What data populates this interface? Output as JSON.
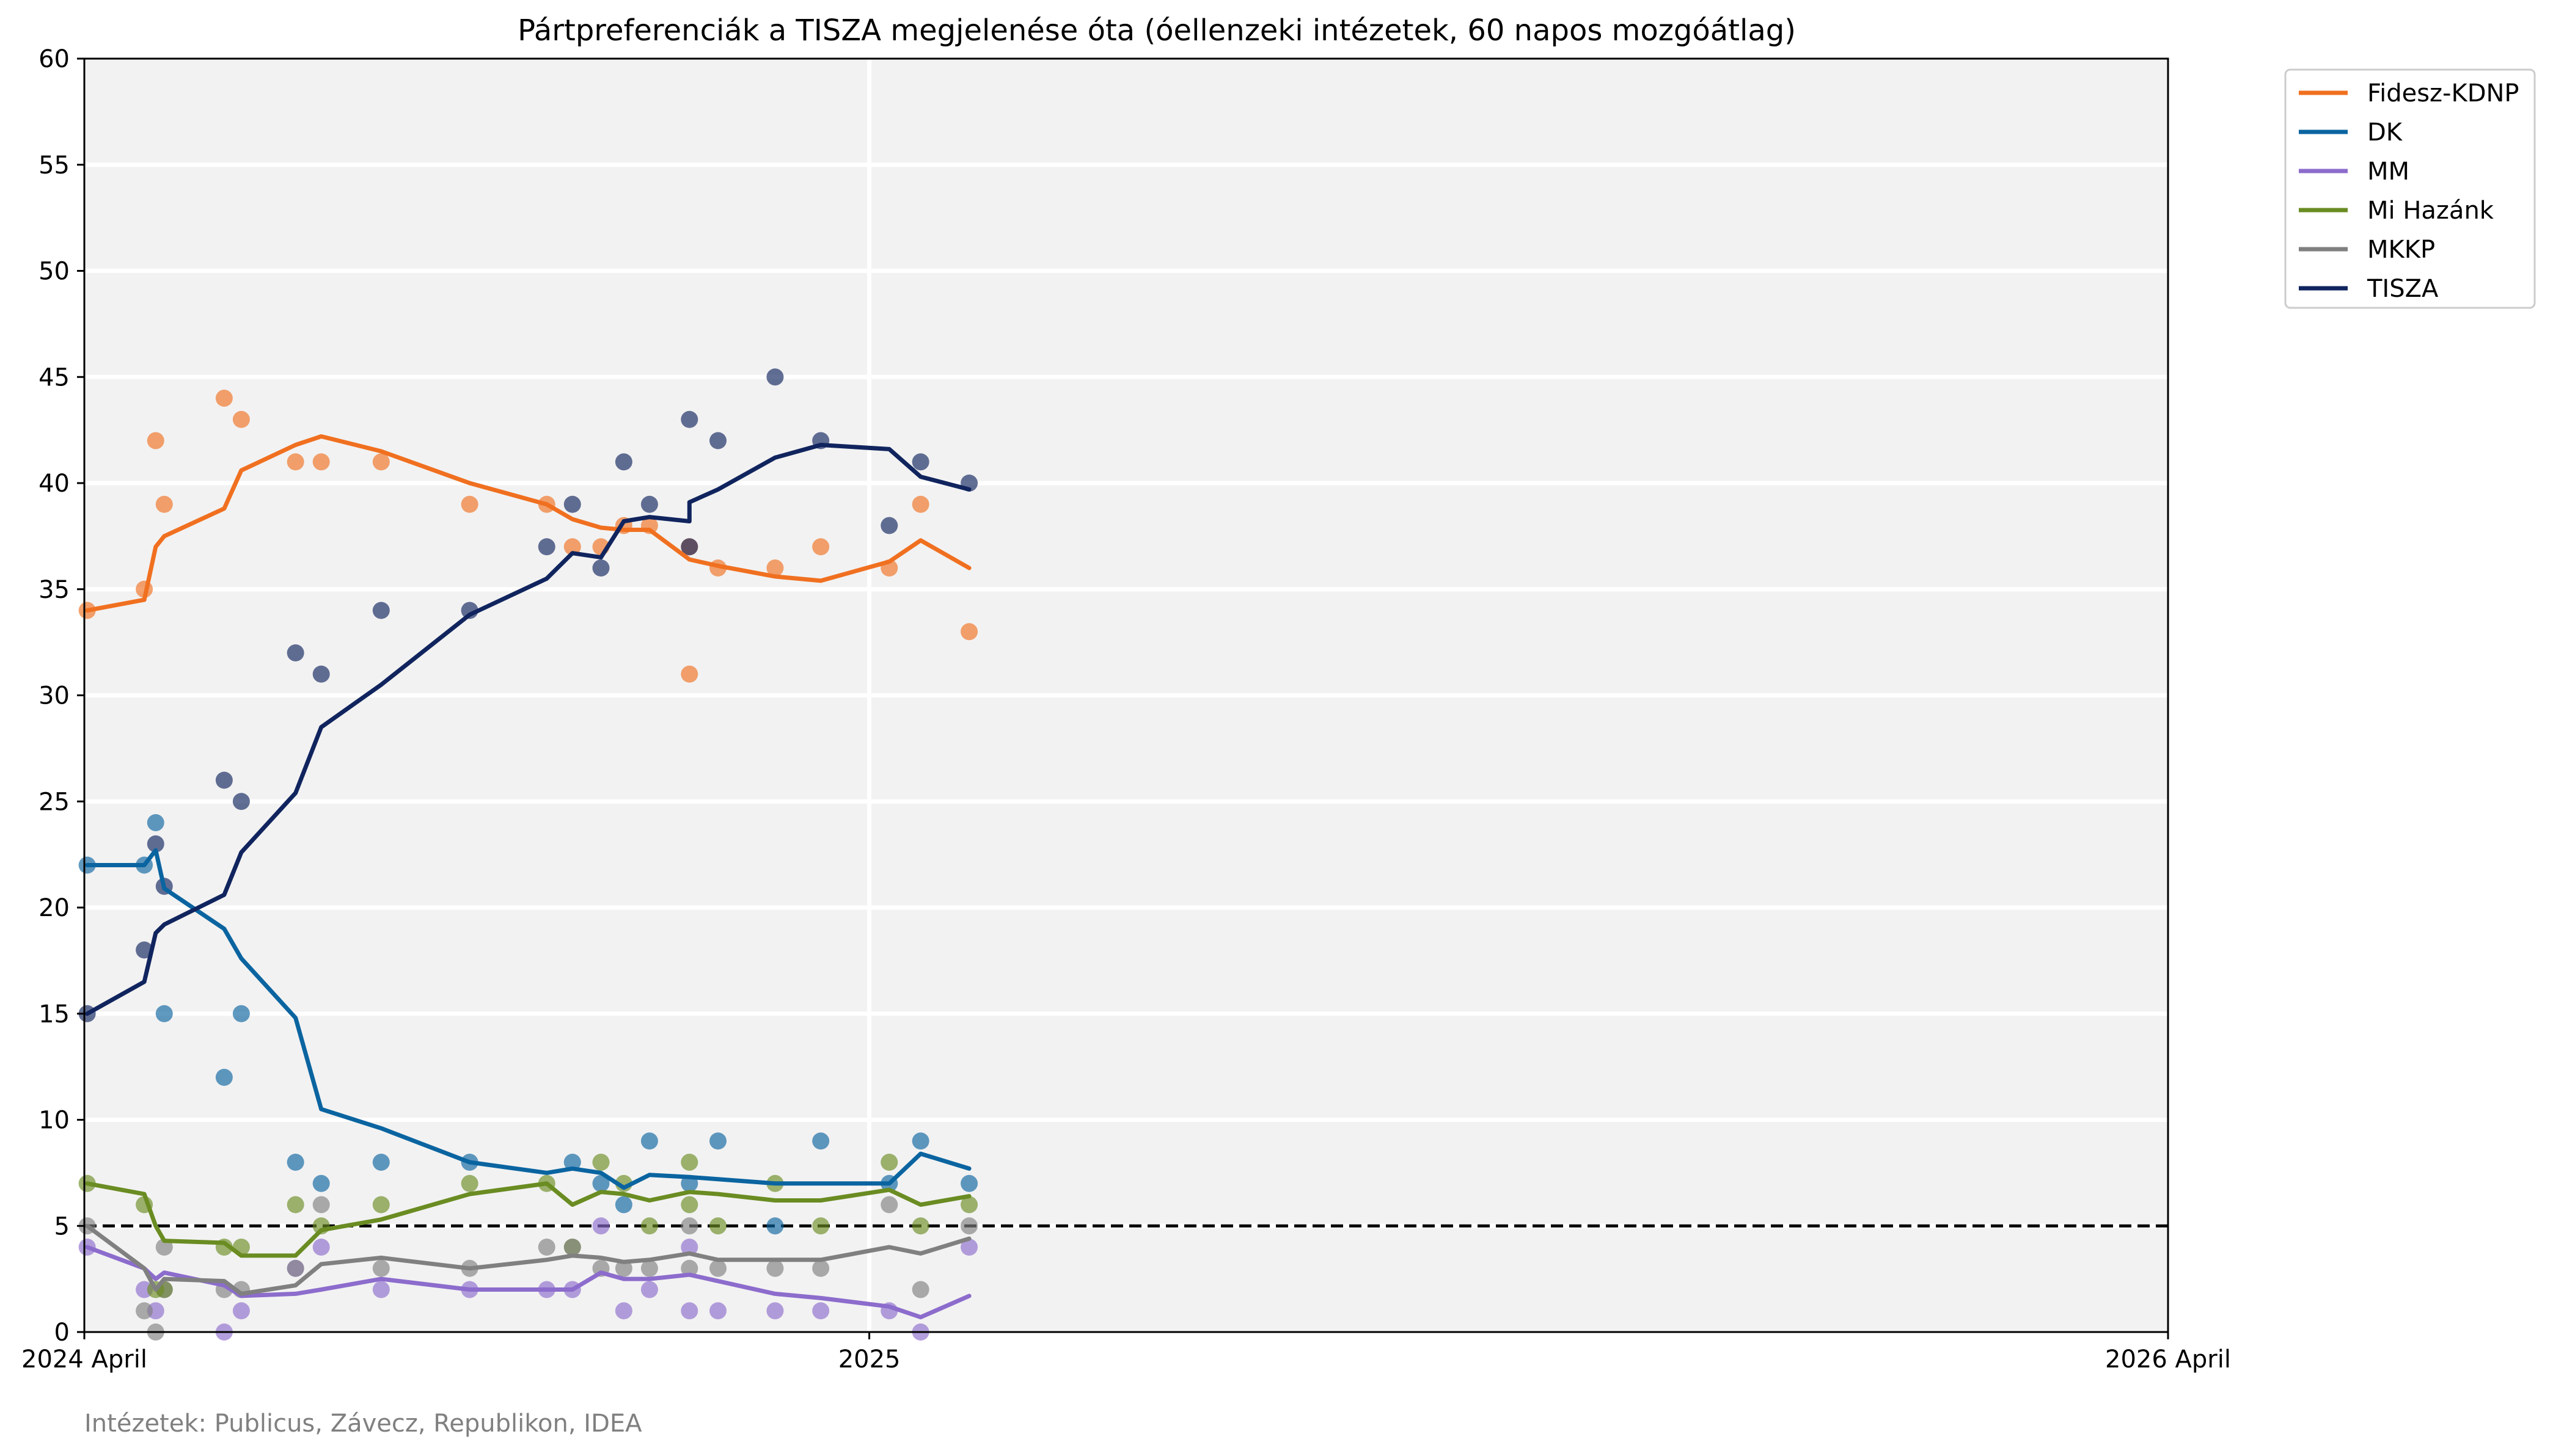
{
  "chart_data": {
    "type": "line",
    "title": "Pártpreferenciák a TISZA megjelenése óta (óellenzeki intézetek, 60 napos mozgóátlag)",
    "xlabel": "",
    "ylabel": "",
    "footnote": "Intézetek: Publicus, Závecz, Republikon, IDEA",
    "x_ticks": [
      {
        "date": "2024-04-01",
        "label": "2024 April"
      },
      {
        "date": "2025-01-01",
        "label": "2025"
      },
      {
        "date": "2026-04-01",
        "label": "2026 April"
      }
    ],
    "xlim": [
      "2024-04-01",
      "2026-04-01"
    ],
    "ylim": [
      0,
      60
    ],
    "y_ticks": [
      0,
      5,
      10,
      15,
      20,
      25,
      30,
      35,
      40,
      45,
      50,
      55,
      60
    ],
    "grid": true,
    "legend_position": "outside top-right",
    "threshold": {
      "value": 5,
      "style": "dashed",
      "color": "#000000"
    },
    "series": [
      {
        "name": "Fidesz-KDNP",
        "color": "#f07020",
        "line": [
          [
            "2024-04-02",
            34
          ],
          [
            "2024-04-22",
            34.5
          ],
          [
            "2024-04-26",
            37
          ],
          [
            "2024-04-29",
            37.5
          ],
          [
            "2024-05-20",
            38.8
          ],
          [
            "2024-05-26",
            40.6
          ],
          [
            "2024-06-14",
            41.8
          ],
          [
            "2024-06-23",
            42.2
          ],
          [
            "2024-07-14",
            41.5
          ],
          [
            "2024-08-14",
            40
          ],
          [
            "2024-09-10",
            39
          ],
          [
            "2024-09-19",
            38.3
          ],
          [
            "2024-09-29",
            37.9
          ],
          [
            "2024-10-07",
            37.8
          ],
          [
            "2024-10-16",
            37.8
          ],
          [
            "2024-10-30",
            36.4
          ],
          [
            "2024-11-09",
            36.1
          ],
          [
            "2024-11-29",
            35.6
          ],
          [
            "2024-12-15",
            35.4
          ],
          [
            "2025-01-08",
            36.3
          ],
          [
            "2025-01-19",
            37.3
          ],
          [
            "2025-02-05",
            36
          ]
        ],
        "points": [
          [
            "2024-04-02",
            34
          ],
          [
            "2024-04-22",
            35
          ],
          [
            "2024-04-26",
            42
          ],
          [
            "2024-04-29",
            39
          ],
          [
            "2024-05-20",
            44
          ],
          [
            "2024-05-26",
            43
          ],
          [
            "2024-06-14",
            41
          ],
          [
            "2024-06-23",
            41
          ],
          [
            "2024-07-14",
            41
          ],
          [
            "2024-08-14",
            39
          ],
          [
            "2024-09-10",
            39
          ],
          [
            "2024-09-19",
            37
          ],
          [
            "2024-09-29",
            37
          ],
          [
            "2024-10-07",
            38
          ],
          [
            "2024-10-16",
            38
          ],
          [
            "2024-10-30",
            31
          ],
          [
            "2024-10-30",
            37
          ],
          [
            "2024-11-09",
            36
          ],
          [
            "2024-11-29",
            36
          ],
          [
            "2024-12-15",
            37
          ],
          [
            "2025-01-08",
            36
          ],
          [
            "2025-01-19",
            39
          ],
          [
            "2025-02-05",
            33
          ]
        ]
      },
      {
        "name": "DK",
        "color": "#0a64a0",
        "line": [
          [
            "2024-04-02",
            22
          ],
          [
            "2024-04-22",
            22
          ],
          [
            "2024-04-26",
            22.7
          ],
          [
            "2024-04-29",
            20.9
          ],
          [
            "2024-05-20",
            19
          ],
          [
            "2024-05-26",
            17.6
          ],
          [
            "2024-06-14",
            14.8
          ],
          [
            "2024-06-23",
            10.5
          ],
          [
            "2024-07-14",
            9.6
          ],
          [
            "2024-08-14",
            8
          ],
          [
            "2024-09-10",
            7.5
          ],
          [
            "2024-09-19",
            7.7
          ],
          [
            "2024-09-29",
            7.5
          ],
          [
            "2024-10-07",
            6.8
          ],
          [
            "2024-10-16",
            7.4
          ],
          [
            "2024-10-30",
            7.3
          ],
          [
            "2024-11-09",
            7.2
          ],
          [
            "2024-11-29",
            7
          ],
          [
            "2024-12-15",
            7
          ],
          [
            "2025-01-08",
            7
          ],
          [
            "2025-01-19",
            8.4
          ],
          [
            "2025-02-05",
            7.7
          ]
        ],
        "points": [
          [
            "2024-04-02",
            22
          ],
          [
            "2024-04-22",
            22
          ],
          [
            "2024-04-26",
            24
          ],
          [
            "2024-04-29",
            15
          ],
          [
            "2024-05-20",
            12
          ],
          [
            "2024-05-26",
            15
          ],
          [
            "2024-06-14",
            8
          ],
          [
            "2024-06-23",
            7
          ],
          [
            "2024-07-14",
            8
          ],
          [
            "2024-08-14",
            8
          ],
          [
            "2024-09-19",
            8
          ],
          [
            "2024-09-29",
            7
          ],
          [
            "2024-10-07",
            6
          ],
          [
            "2024-10-16",
            9
          ],
          [
            "2024-10-30",
            7
          ],
          [
            "2024-11-09",
            9
          ],
          [
            "2024-11-29",
            5
          ],
          [
            "2024-12-15",
            9
          ],
          [
            "2025-01-08",
            7
          ],
          [
            "2025-01-19",
            9
          ],
          [
            "2025-02-05",
            7
          ]
        ]
      },
      {
        "name": "MM",
        "color": "#8c6ccc",
        "line": [
          [
            "2024-04-02",
            4
          ],
          [
            "2024-04-22",
            3
          ],
          [
            "2024-04-26",
            2.5
          ],
          [
            "2024-04-29",
            2.8
          ],
          [
            "2024-05-20",
            2.2
          ],
          [
            "2024-05-26",
            1.7
          ],
          [
            "2024-06-14",
            1.8
          ],
          [
            "2024-06-23",
            2
          ],
          [
            "2024-07-14",
            2.5
          ],
          [
            "2024-08-14",
            2
          ],
          [
            "2024-09-10",
            2
          ],
          [
            "2024-09-19",
            2
          ],
          [
            "2024-09-29",
            2.8
          ],
          [
            "2024-10-07",
            2.5
          ],
          [
            "2024-10-16",
            2.5
          ],
          [
            "2024-10-30",
            2.7
          ],
          [
            "2024-11-09",
            2.4
          ],
          [
            "2024-11-29",
            1.8
          ],
          [
            "2024-12-15",
            1.6
          ],
          [
            "2025-01-08",
            1.2
          ],
          [
            "2025-01-19",
            0.7
          ],
          [
            "2025-02-05",
            1.7
          ]
        ],
        "points": [
          [
            "2024-04-02",
            4
          ],
          [
            "2024-04-22",
            2
          ],
          [
            "2024-04-26",
            1
          ],
          [
            "2024-04-29",
            2
          ],
          [
            "2024-05-20",
            0
          ],
          [
            "2024-05-26",
            1
          ],
          [
            "2024-06-14",
            3
          ],
          [
            "2024-06-23",
            4
          ],
          [
            "2024-07-14",
            2
          ],
          [
            "2024-08-14",
            2
          ],
          [
            "2024-09-10",
            2
          ],
          [
            "2024-09-19",
            2
          ],
          [
            "2024-09-29",
            5
          ],
          [
            "2024-10-07",
            1
          ],
          [
            "2024-10-16",
            2
          ],
          [
            "2024-10-30",
            4
          ],
          [
            "2024-10-30",
            1
          ],
          [
            "2024-11-09",
            1
          ],
          [
            "2024-11-29",
            1
          ],
          [
            "2024-12-15",
            1
          ],
          [
            "2025-01-08",
            1
          ],
          [
            "2025-01-19",
            0
          ],
          [
            "2025-02-05",
            4
          ]
        ]
      },
      {
        "name": "Mi Hazánk",
        "color": "#6a8c22",
        "line": [
          [
            "2024-04-02",
            7
          ],
          [
            "2024-04-22",
            6.5
          ],
          [
            "2024-04-26",
            5
          ],
          [
            "2024-04-29",
            4.3
          ],
          [
            "2024-05-20",
            4.2
          ],
          [
            "2024-05-26",
            3.6
          ],
          [
            "2024-06-14",
            3.6
          ],
          [
            "2024-06-23",
            4.8
          ],
          [
            "2024-07-14",
            5.3
          ],
          [
            "2024-08-14",
            6.5
          ],
          [
            "2024-09-10",
            7
          ],
          [
            "2024-09-19",
            6
          ],
          [
            "2024-09-29",
            6.6
          ],
          [
            "2024-10-07",
            6.5
          ],
          [
            "2024-10-16",
            6.2
          ],
          [
            "2024-10-30",
            6.6
          ],
          [
            "2024-11-09",
            6.5
          ],
          [
            "2024-11-29",
            6.2
          ],
          [
            "2024-12-15",
            6.2
          ],
          [
            "2025-01-08",
            6.7
          ],
          [
            "2025-01-19",
            6
          ],
          [
            "2025-02-05",
            6.4
          ]
        ],
        "points": [
          [
            "2024-04-02",
            7
          ],
          [
            "2024-04-22",
            6
          ],
          [
            "2024-04-26",
            2
          ],
          [
            "2024-04-29",
            2
          ],
          [
            "2024-05-20",
            4
          ],
          [
            "2024-05-26",
            4
          ],
          [
            "2024-06-14",
            6
          ],
          [
            "2024-06-23",
            5
          ],
          [
            "2024-07-14",
            6
          ],
          [
            "2024-08-14",
            7
          ],
          [
            "2024-09-10",
            7
          ],
          [
            "2024-09-19",
            4
          ],
          [
            "2024-09-29",
            8
          ],
          [
            "2024-10-07",
            7
          ],
          [
            "2024-10-16",
            5
          ],
          [
            "2024-10-30",
            8
          ],
          [
            "2024-10-30",
            6
          ],
          [
            "2024-11-09",
            5
          ],
          [
            "2024-11-29",
            7
          ],
          [
            "2024-12-15",
            5
          ],
          [
            "2025-01-08",
            8
          ],
          [
            "2025-01-19",
            5
          ],
          [
            "2025-02-05",
            6
          ]
        ]
      },
      {
        "name": "MKKP",
        "color": "#808080",
        "line": [
          [
            "2024-04-02",
            5
          ],
          [
            "2024-04-22",
            3
          ],
          [
            "2024-04-26",
            2
          ],
          [
            "2024-04-29",
            2.5
          ],
          [
            "2024-05-20",
            2.4
          ],
          [
            "2024-05-26",
            1.8
          ],
          [
            "2024-06-14",
            2.2
          ],
          [
            "2024-06-23",
            3.2
          ],
          [
            "2024-07-14",
            3.5
          ],
          [
            "2024-08-14",
            3
          ],
          [
            "2024-09-10",
            3.4
          ],
          [
            "2024-09-19",
            3.6
          ],
          [
            "2024-09-29",
            3.5
          ],
          [
            "2024-10-07",
            3.3
          ],
          [
            "2024-10-16",
            3.4
          ],
          [
            "2024-10-30",
            3.7
          ],
          [
            "2024-11-09",
            3.4
          ],
          [
            "2024-11-29",
            3.4
          ],
          [
            "2024-12-15",
            3.4
          ],
          [
            "2025-01-08",
            4
          ],
          [
            "2025-01-19",
            3.7
          ],
          [
            "2025-02-05",
            4.4
          ]
        ],
        "points": [
          [
            "2024-04-02",
            5
          ],
          [
            "2024-04-22",
            1
          ],
          [
            "2024-04-26",
            0
          ],
          [
            "2024-04-29",
            4
          ],
          [
            "2024-05-20",
            2
          ],
          [
            "2024-05-26",
            2
          ],
          [
            "2024-06-14",
            3
          ],
          [
            "2024-06-23",
            6
          ],
          [
            "2024-07-14",
            3
          ],
          [
            "2024-08-14",
            3
          ],
          [
            "2024-09-10",
            4
          ],
          [
            "2024-09-19",
            4
          ],
          [
            "2024-09-29",
            3
          ],
          [
            "2024-10-07",
            3
          ],
          [
            "2024-10-16",
            3
          ],
          [
            "2024-10-30",
            5
          ],
          [
            "2024-10-30",
            3
          ],
          [
            "2024-11-09",
            3
          ],
          [
            "2024-11-29",
            3
          ],
          [
            "2024-12-15",
            3
          ],
          [
            "2025-01-08",
            6
          ],
          [
            "2025-01-19",
            2
          ],
          [
            "2025-02-05",
            5
          ]
        ]
      },
      {
        "name": "TISZA",
        "color": "#10245e",
        "line": [
          [
            "2024-04-02",
            15
          ],
          [
            "2024-04-22",
            16.5
          ],
          [
            "2024-04-26",
            18.8
          ],
          [
            "2024-04-29",
            19.2
          ],
          [
            "2024-05-20",
            20.6
          ],
          [
            "2024-05-26",
            22.6
          ],
          [
            "2024-06-14",
            25.4
          ],
          [
            "2024-06-23",
            28.5
          ],
          [
            "2024-07-14",
            30.5
          ],
          [
            "2024-08-14",
            33.8
          ],
          [
            "2024-09-10",
            35.5
          ],
          [
            "2024-09-19",
            36.7
          ],
          [
            "2024-09-29",
            36.5
          ],
          [
            "2024-10-07",
            38.2
          ],
          [
            "2024-10-16",
            38.4
          ],
          [
            "2024-10-30",
            38.2
          ],
          [
            "2024-10-30",
            39.1
          ],
          [
            "2024-11-09",
            39.7
          ],
          [
            "2024-11-29",
            41.2
          ],
          [
            "2024-12-15",
            41.8
          ],
          [
            "2025-01-08",
            41.6
          ],
          [
            "2025-01-19",
            40.3
          ],
          [
            "2025-02-05",
            39.7
          ]
        ],
        "points": [
          [
            "2024-04-02",
            15
          ],
          [
            "2024-04-22",
            18
          ],
          [
            "2024-04-26",
            23
          ],
          [
            "2024-04-29",
            21
          ],
          [
            "2024-05-20",
            26
          ],
          [
            "2024-05-26",
            25
          ],
          [
            "2024-06-14",
            32
          ],
          [
            "2024-06-23",
            31
          ],
          [
            "2024-07-14",
            34
          ],
          [
            "2024-08-14",
            34
          ],
          [
            "2024-09-10",
            37
          ],
          [
            "2024-09-19",
            39
          ],
          [
            "2024-09-29",
            36
          ],
          [
            "2024-10-07",
            41
          ],
          [
            "2024-10-16",
            39
          ],
          [
            "2024-10-30",
            43
          ],
          [
            "2024-10-30",
            37
          ],
          [
            "2024-11-09",
            42
          ],
          [
            "2024-11-29",
            45
          ],
          [
            "2024-12-15",
            42
          ],
          [
            "2025-01-08",
            38
          ],
          [
            "2025-01-19",
            41
          ],
          [
            "2025-02-05",
            40
          ]
        ]
      }
    ]
  }
}
